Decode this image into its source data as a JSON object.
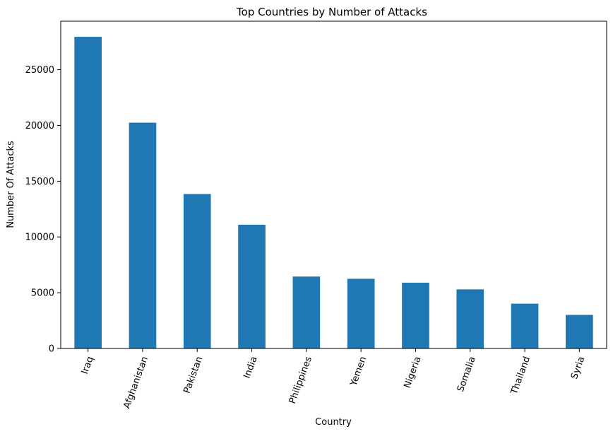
{
  "chart_data": {
    "type": "bar",
    "title": "Top Countries by Number of Attacks",
    "xlabel": "Country",
    "ylabel": "Number Of Attacks",
    "categories": [
      "Iraq",
      "Afghanistan",
      "Pakistan",
      "India",
      "Philippines",
      "Yemen",
      "Nigeria",
      "Somalia",
      "Thailand",
      "Syria"
    ],
    "values": [
      27950,
      20250,
      13850,
      11100,
      6450,
      6250,
      5900,
      5300,
      4020,
      3010
    ],
    "yticks": [
      0,
      5000,
      10000,
      15000,
      20000,
      25000
    ],
    "ylim": [
      0,
      29350
    ],
    "bar_color": "#1f77b4",
    "grid": false,
    "legend": false
  }
}
